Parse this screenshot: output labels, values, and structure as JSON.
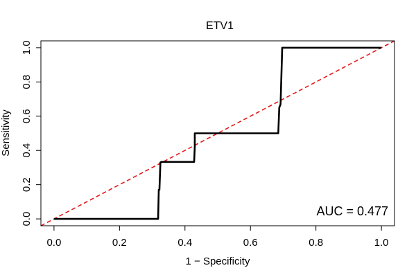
{
  "chart_data": {
    "type": "line",
    "title": "ETV1",
    "xlabel": "1 − Specificity",
    "ylabel": "Sensitivity",
    "xlim": [
      -0.04,
      1.04
    ],
    "ylim": [
      -0.04,
      1.04
    ],
    "xticks": [
      0.0,
      0.2,
      0.4,
      0.6,
      0.8,
      1.0
    ],
    "yticks": [
      0.0,
      0.2,
      0.4,
      0.6,
      0.8,
      1.0
    ],
    "xtick_labels": [
      "0.0",
      "0.2",
      "0.4",
      "0.6",
      "0.8",
      "1.0"
    ],
    "ytick_labels": [
      "0.0",
      "0.2",
      "0.4",
      "0.6",
      "0.8",
      "1.0"
    ],
    "grid": false,
    "series": [
      {
        "color": "#000000",
        "style": "solid",
        "x": [
          0.0,
          0.318,
          0.32,
          0.322,
          0.325,
          0.328,
          0.428,
          0.43,
          0.43,
          0.685,
          0.688,
          0.692,
          0.697,
          0.7,
          1.0
        ],
        "y": [
          0.0,
          0.0,
          0.17,
          0.17,
          0.33,
          0.333,
          0.333,
          0.42,
          0.5,
          0.5,
          0.65,
          0.67,
          1.0,
          1.0,
          1.0
        ]
      },
      {
        "color": "#e31a1c",
        "style": "dashed",
        "x": [
          -0.04,
          1.04
        ],
        "y": [
          -0.04,
          1.04
        ]
      }
    ],
    "annotation": {
      "text": "AUC = 0.477",
      "position": "bottom-right"
    }
  }
}
